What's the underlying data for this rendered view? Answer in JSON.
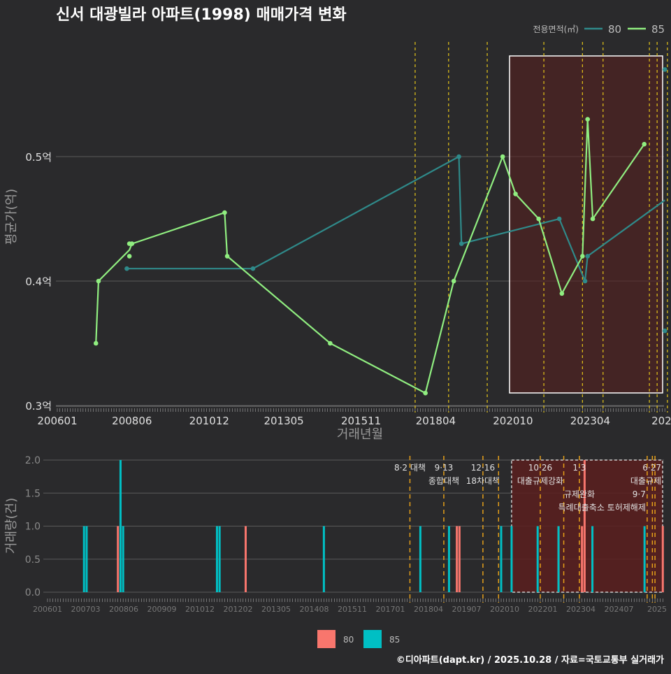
{
  "title": "신서 대광빌라 아파트(1998) 매매가격 변화",
  "footer": "©디아파트(dapt.kr) / 2025.10.28 / 자료=국토교통부 실거래가",
  "colors": {
    "s80_line": "#2f8a8a",
    "s85_line": "#90ee80",
    "bar80": "#f8766d",
    "bar85": "#00bfc4",
    "event": "#e6c619",
    "highlight": "#5a1f1f"
  },
  "chart_data": [
    {
      "type": "line",
      "title": "신서 대광빌라 아파트(1998) 매매가격 변화",
      "xlabel": "거래년월",
      "ylabel": "평균가(억)",
      "ylim": [
        0.3,
        0.6
      ],
      "yticks": [
        "0.3억",
        "0.4억",
        "0.5억"
      ],
      "yvalues": [
        0.3,
        0.4,
        0.5
      ],
      "xticks": [
        "200601",
        "200806",
        "201012",
        "201305",
        "201511",
        "201804",
        "202010",
        "202304",
        "2025"
      ],
      "legend": {
        "title": "전용면적(㎡)",
        "placement": "top-right",
        "items": [
          "80",
          "85"
        ]
      },
      "series": [
        {
          "name": "80",
          "points": [
            [
              "2008-04",
              0.41
            ],
            [
              "2012-05",
              0.41
            ],
            [
              "2019-01",
              0.5
            ],
            [
              "2019-02",
              0.43
            ],
            [
              "2022-04",
              0.45
            ],
            [
              "2023-02",
              0.4
            ],
            [
              "2023-03",
              0.42
            ],
            [
              "2025-09",
              0.57
            ],
            [
              "2025-09",
              0.36
            ]
          ],
          "line": [
            [
              "2008-04",
              0.41
            ],
            [
              "2012-05",
              0.41
            ],
            [
              "2019-01",
              0.5
            ],
            [
              "2019-02",
              0.43
            ],
            [
              "2022-04",
              0.45
            ],
            [
              "2023-02",
              0.4
            ],
            [
              "2023-03",
              0.42
            ],
            [
              "2025-09",
              0.465
            ]
          ]
        },
        {
          "name": "85",
          "points": [
            [
              "2007-04",
              0.35
            ],
            [
              "2007-05",
              0.4
            ],
            [
              "2008-05",
              0.43
            ],
            [
              "2008-05",
              0.42
            ],
            [
              "2008-06",
              0.43
            ],
            [
              "2011-06",
              0.455
            ],
            [
              "2011-07",
              0.42
            ],
            [
              "2014-11",
              0.35
            ],
            [
              "2017-12",
              0.31
            ],
            [
              "2018-11",
              0.4
            ],
            [
              "2020-06",
              0.5
            ],
            [
              "2020-11",
              0.47
            ],
            [
              "2021-08",
              0.45
            ],
            [
              "2022-05",
              0.39
            ],
            [
              "2023-01",
              0.42
            ],
            [
              "2023-03",
              0.53
            ],
            [
              "2023-05",
              0.45
            ],
            [
              "2025-01",
              0.51
            ]
          ],
          "line": [
            [
              "2007-04",
              0.35
            ],
            [
              "2007-05",
              0.4
            ],
            [
              "2008-05",
              0.425
            ],
            [
              "2008-06",
              0.43
            ],
            [
              "2011-06",
              0.455
            ],
            [
              "2011-07",
              0.42
            ],
            [
              "2014-11",
              0.35
            ],
            [
              "2017-12",
              0.31
            ],
            [
              "2018-11",
              0.4
            ],
            [
              "2020-06",
              0.5
            ],
            [
              "2020-11",
              0.47
            ],
            [
              "2021-08",
              0.45
            ],
            [
              "2022-05",
              0.39
            ],
            [
              "2023-01",
              0.42
            ],
            [
              "2023-03",
              0.53
            ],
            [
              "2023-05",
              0.45
            ],
            [
              "2025-01",
              0.51
            ]
          ]
        }
      ],
      "event_months": [
        "2017-08",
        "2018-09",
        "2019-12",
        "2021-10",
        "2023-01",
        "2023-09",
        "2025-03",
        "2025-06",
        "2025-10"
      ],
      "highlight": [
        "2020-12",
        "2025-10"
      ]
    },
    {
      "type": "bar",
      "xlabel": "",
      "ylabel": "거래량(건)",
      "ylim": [
        0,
        2
      ],
      "yticks": [
        "0.0",
        "0.5",
        "1.0",
        "1.5",
        "2.0"
      ],
      "xticks": [
        "200601",
        "200703",
        "200806",
        "200909",
        "201012",
        "201202",
        "201305",
        "201408",
        "201511",
        "201701",
        "201804",
        "201907",
        "202010",
        "202201",
        "202304",
        "202407",
        "2025"
      ],
      "legend": {
        "placement": "bottom",
        "items": [
          "80",
          "85"
        ]
      },
      "series": [
        {
          "name": "80",
          "bars": [
            [
              "2008-04",
              1
            ],
            [
              "2012-05",
              1
            ],
            [
              "2019-02",
              1
            ],
            [
              "2019-03",
              1
            ],
            [
              "2022-05",
              1
            ],
            [
              "2023-02",
              1
            ],
            [
              "2023-03",
              2
            ],
            [
              "2025-09",
              1
            ]
          ]
        },
        {
          "name": "85",
          "bars": [
            [
              "2007-03",
              1
            ],
            [
              "2007-04",
              1
            ],
            [
              "2008-05",
              2
            ],
            [
              "2008-06",
              1
            ],
            [
              "2011-06",
              1
            ],
            [
              "2011-07",
              1
            ],
            [
              "2014-11",
              1
            ],
            [
              "2017-12",
              1
            ],
            [
              "2018-11",
              1
            ],
            [
              "2020-07",
              1
            ],
            [
              "2020-11",
              1
            ],
            [
              "2021-09",
              1
            ],
            [
              "2022-05",
              1
            ],
            [
              "2023-06",
              1
            ],
            [
              "2025-02",
              1
            ]
          ]
        }
      ],
      "events": [
        {
          "month": "2017-08",
          "date": "8·2 대책",
          "label": ""
        },
        {
          "month": "2018-09",
          "date": "9·13",
          "label": "종합대책"
        },
        {
          "month": "2019-12",
          "date": "12·16",
          "label": "18차대책"
        },
        {
          "month": "2020-06",
          "date": "",
          "label": ""
        },
        {
          "month": "2021-10",
          "date": "10·26",
          "label": "대출규제강화"
        },
        {
          "month": "2022-07",
          "date": "",
          "label": ""
        },
        {
          "month": "2023-01",
          "date": "1·3",
          "label": "규제완화"
        },
        {
          "month": "2025-03",
          "date": "9·7",
          "label": "특례대출축소 토허제해제"
        },
        {
          "month": "2025-05",
          "date": "",
          "label": ""
        },
        {
          "month": "2025-06",
          "date": "6·27",
          "label": "대출규제"
        }
      ],
      "highlight": [
        "2020-11",
        "2025-10"
      ]
    }
  ]
}
